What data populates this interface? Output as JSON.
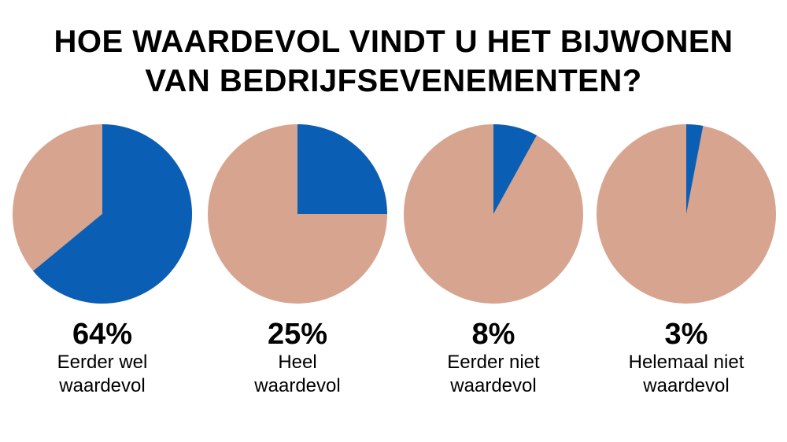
{
  "chart_data": {
    "type": "pie",
    "title_lines": [
      "HOE WAARDEVOL VINDT U HET BIJWONEN",
      "VAN BEDRIJFSEVENEMENTEN?"
    ],
    "colors": {
      "highlight": "#0a5fb4",
      "rest": "#d6a48f"
    },
    "pies": [
      {
        "value": 64,
        "label": "64%",
        "desc_lines": [
          "Eerder wel",
          "waardevol"
        ]
      },
      {
        "value": 25,
        "label": "25%",
        "desc_lines": [
          "Heel",
          "waardevol"
        ]
      },
      {
        "value": 8,
        "label": "8%",
        "desc_lines": [
          "Eerder niet",
          "waardevol"
        ]
      },
      {
        "value": 3,
        "label": "3%",
        "desc_lines": [
          "Helemaal niet",
          "waardevol"
        ]
      }
    ]
  }
}
